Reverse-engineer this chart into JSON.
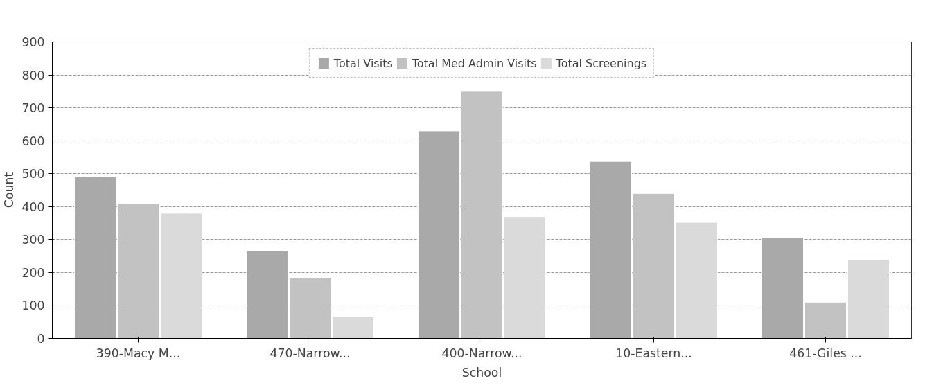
{
  "chart_data": {
    "type": "bar",
    "xlabel": "School",
    "ylabel": "Count",
    "categories": [
      "390-Macy M...",
      "470-Narrow...",
      "400-Narrow...",
      "10-Eastern...",
      "461-Giles ..."
    ],
    "series": [
      {
        "name": "Total Visits",
        "color": "#a9a9a9",
        "values": [
          490,
          265,
          630,
          537,
          305
        ]
      },
      {
        "name": "Total Med Admin Visits",
        "color": "#c2c2c2",
        "values": [
          410,
          185,
          750,
          440,
          110
        ]
      },
      {
        "name": "Total Screenings",
        "color": "#dadada",
        "values": [
          380,
          65,
          370,
          352,
          240
        ]
      }
    ],
    "ylim": [
      0,
      900
    ],
    "yticks": [
      0,
      100,
      200,
      300,
      400,
      500,
      600,
      700,
      800,
      900
    ],
    "grid": "y",
    "legend": "top"
  }
}
